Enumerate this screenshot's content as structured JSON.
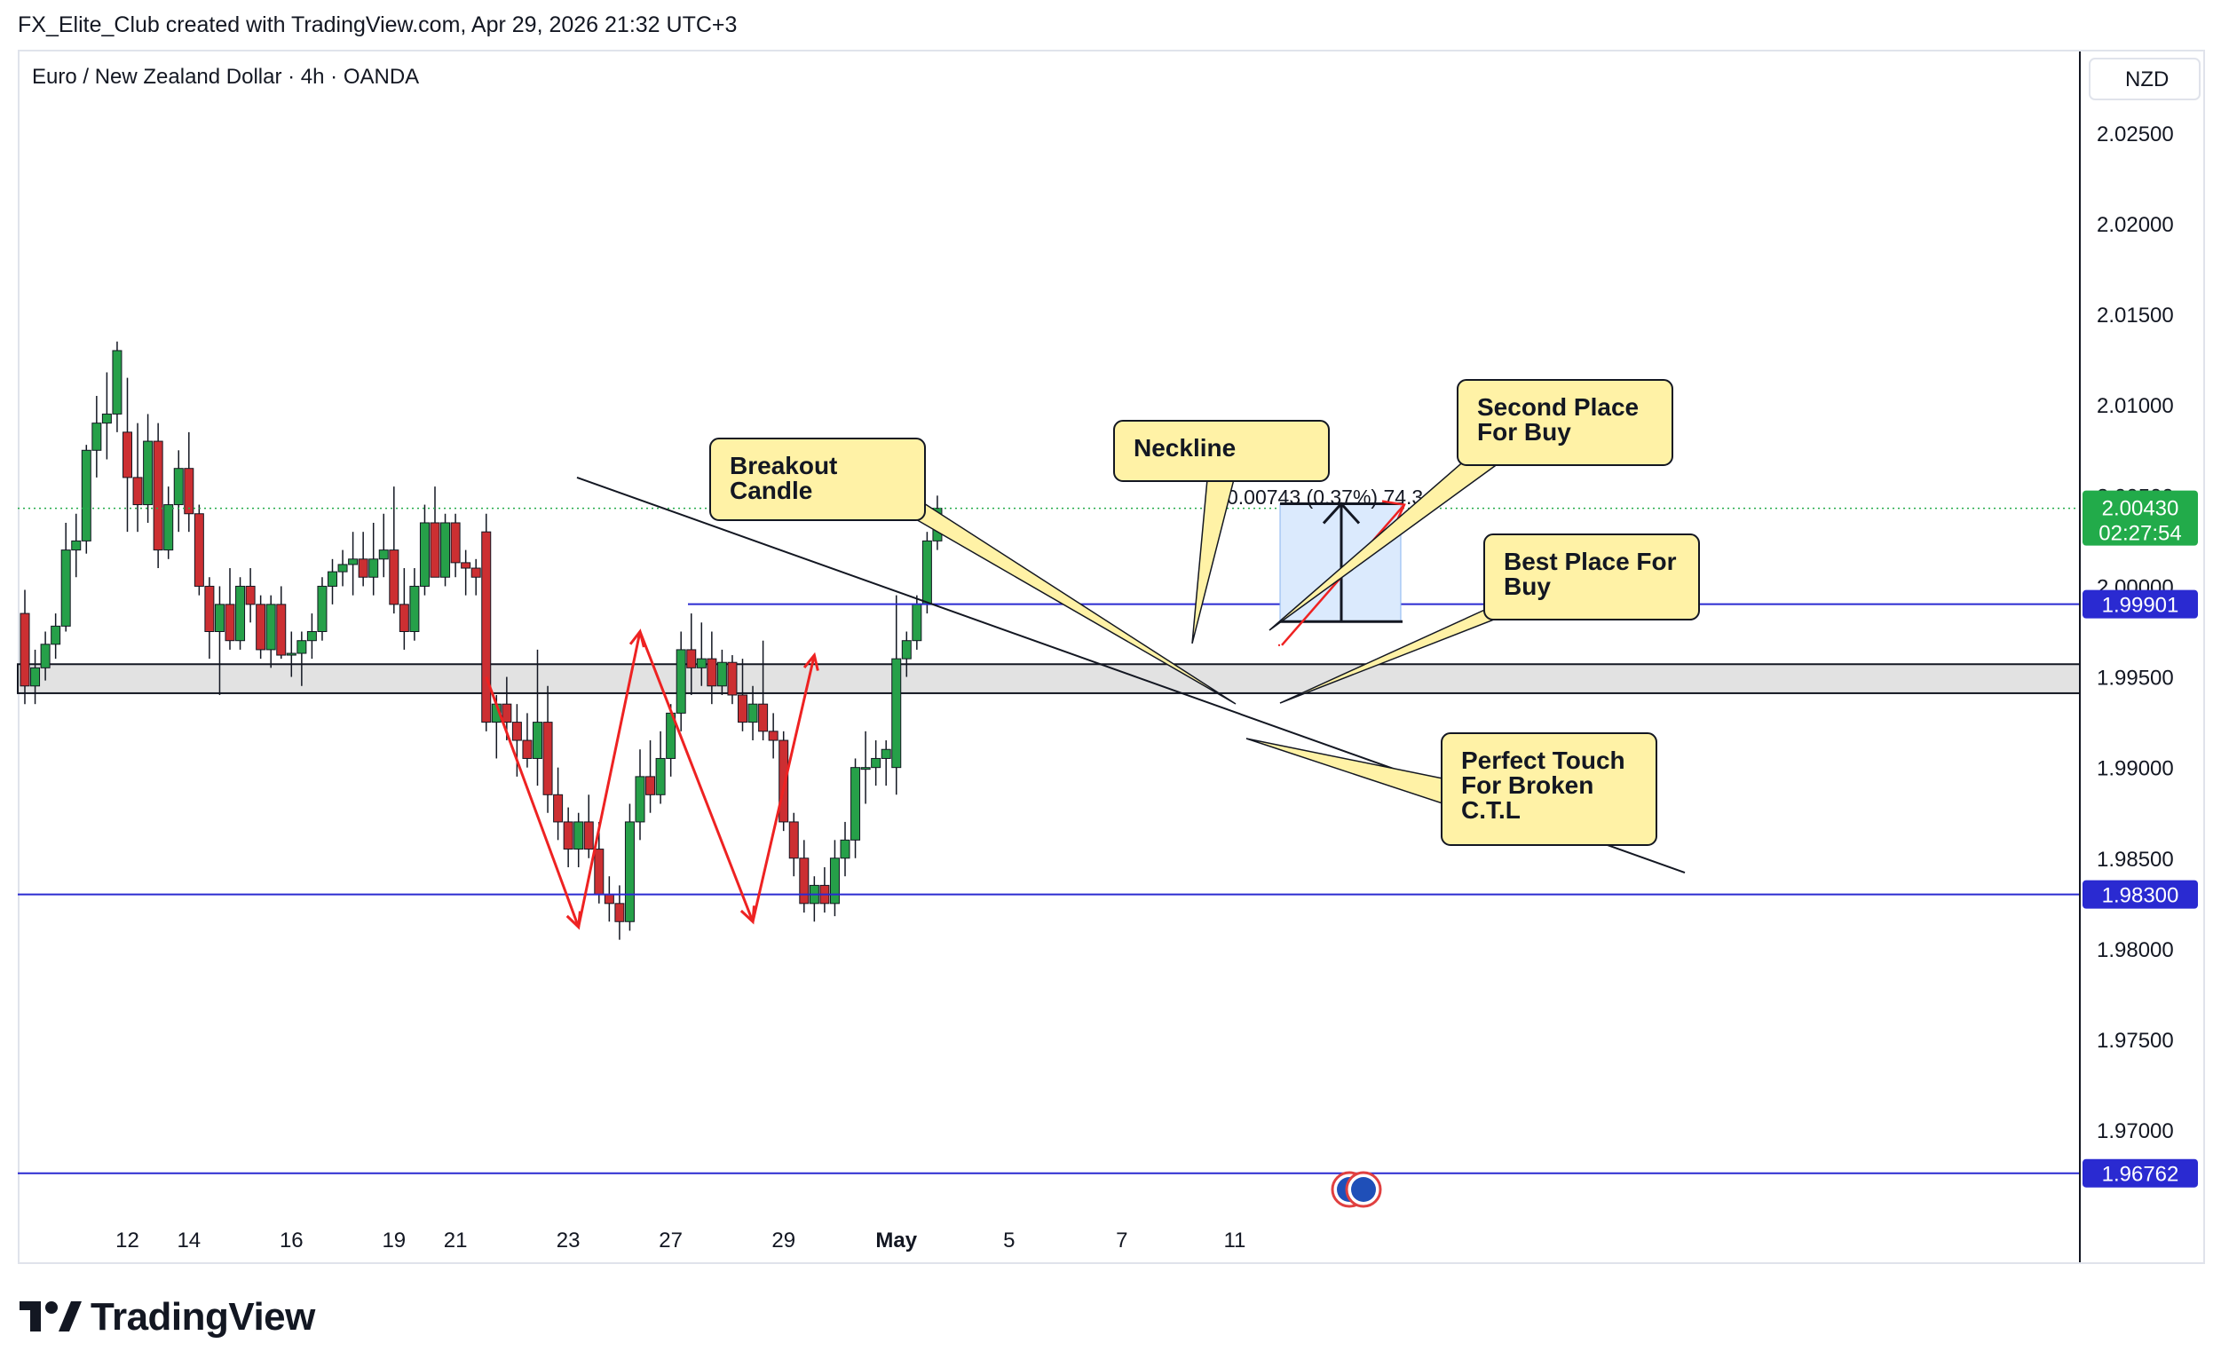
{
  "header": "FX_Elite_Club created with TradingView.com, Apr 29, 2026 21:32 UTC+3",
  "symbol_title": "Euro / New Zealand Dollar · 4h · OANDA",
  "currency": "NZD",
  "brand": "TradingView",
  "colors": {
    "up": "#26a049",
    "down": "#cc2f32",
    "level_line": "#2a2ad1",
    "price_tag": "#22ab4a",
    "callout_fill": "#fff2a6",
    "arrow": "#ee2222",
    "box_fill": "#dbeafd"
  },
  "chart_data": {
    "type": "candlestick",
    "ylim": [
      1.9655,
      2.0295
    ],
    "y_ticks": [
      {
        "value": 2.025,
        "label": "2.02500"
      },
      {
        "value": 2.02,
        "label": "2.02000"
      },
      {
        "value": 2.015,
        "label": "2.01500"
      },
      {
        "value": 2.01,
        "label": "2.01000"
      },
      {
        "value": 2.005,
        "label": "2.00500"
      },
      {
        "value": 2.0,
        "label": "2.00000"
      },
      {
        "value": 1.995,
        "label": "1.99500"
      },
      {
        "value": 1.99,
        "label": "1.99000"
      },
      {
        "value": 1.985,
        "label": "1.98500"
      },
      {
        "value": 1.98,
        "label": "1.98000"
      },
      {
        "value": 1.975,
        "label": "1.97500"
      },
      {
        "value": 1.97,
        "label": "1.97000"
      }
    ],
    "x_ticks": [
      {
        "bar": 10,
        "label": "12"
      },
      {
        "bar": 16,
        "label": "14"
      },
      {
        "bar": 26,
        "label": "16"
      },
      {
        "bar": 36,
        "label": "19"
      },
      {
        "bar": 42,
        "label": "21"
      },
      {
        "bar": 53,
        "label": "23"
      },
      {
        "bar": 63,
        "label": "27"
      },
      {
        "bar": 74,
        "label": "29"
      },
      {
        "bar": 85,
        "label": "May",
        "bold": true
      },
      {
        "bar": 96,
        "label": "5"
      },
      {
        "bar": 107,
        "label": "7"
      },
      {
        "bar": 118,
        "label": "11"
      }
    ],
    "candles": [
      [
        1.9985,
        1.9998,
        1.9935,
        1.9945
      ],
      [
        1.9945,
        1.9965,
        1.9935,
        1.9955
      ],
      [
        1.9955,
        1.9975,
        1.9948,
        1.9968
      ],
      [
        1.9968,
        1.9985,
        1.996,
        1.9978
      ],
      [
        1.9978,
        2.0035,
        1.9975,
        2.002
      ],
      [
        2.002,
        2.004,
        2.0005,
        2.0025
      ],
      [
        2.0025,
        2.0078,
        2.0018,
        2.0075
      ],
      [
        2.0075,
        2.0105,
        2.006,
        2.009
      ],
      [
        2.009,
        2.0118,
        2.007,
        2.0095
      ],
      [
        2.0095,
        2.0135,
        2.0085,
        2.013
      ],
      [
        2.0085,
        2.0115,
        2.003,
        2.006
      ],
      [
        2.006,
        2.009,
        2.003,
        2.0045
      ],
      [
        2.0045,
        2.0095,
        2.0035,
        2.008
      ],
      [
        2.008,
        2.009,
        2.001,
        2.002
      ],
      [
        2.002,
        2.0055,
        2.0015,
        2.0045
      ],
      [
        2.0045,
        2.0075,
        2.003,
        2.0065
      ],
      [
        2.0065,
        2.0085,
        2.003,
        2.004
      ],
      [
        2.004,
        2.0045,
        1.9995,
        2.0
      ],
      [
        2.0,
        2.0005,
        1.996,
        1.9975
      ],
      [
        1.9975,
        2.0,
        1.994,
        1.999
      ],
      [
        1.999,
        2.001,
        1.9965,
        1.997
      ],
      [
        1.997,
        2.0005,
        1.9965,
        2.0
      ],
      [
        2.0,
        2.001,
        1.998,
        1.999
      ],
      [
        1.999,
        1.9995,
        1.996,
        1.9965
      ],
      [
        1.9965,
        1.9995,
        1.9955,
        1.999
      ],
      [
        1.999,
        2.0,
        1.996,
        1.9962
      ],
      [
        1.9962,
        1.9975,
        1.995,
        1.9963
      ],
      [
        1.9963,
        1.9975,
        1.9945,
        1.997
      ],
      [
        1.997,
        1.9985,
        1.996,
        1.9975
      ],
      [
        1.9975,
        2.0005,
        1.997,
        2.0
      ],
      [
        2.0,
        2.0015,
        1.999,
        2.0008
      ],
      [
        2.0008,
        2.002,
        2.0,
        2.0012
      ],
      [
        2.0012,
        2.003,
        1.9995,
        2.0015
      ],
      [
        2.0015,
        2.003,
        2.0,
        2.0005
      ],
      [
        2.0005,
        2.0035,
        1.9995,
        2.0015
      ],
      [
        2.0015,
        2.004,
        2.0005,
        2.002
      ],
      [
        2.002,
        2.0055,
        1.9985,
        1.999
      ],
      [
        1.999,
        2.001,
        1.9965,
        1.9975
      ],
      [
        1.9975,
        2.001,
        1.997,
        2.0
      ],
      [
        2.0,
        2.0045,
        1.9995,
        2.0035
      ],
      [
        2.0035,
        2.0055,
        2.001,
        2.0005
      ],
      [
        2.0005,
        2.004,
        2.0,
        2.0035
      ],
      [
        2.0035,
        2.004,
        2.0005,
        2.0013
      ],
      [
        2.0013,
        2.002,
        1.9995,
        2.001
      ],
      [
        2.001,
        2.0015,
        1.9995,
        2.0005
      ],
      [
        2.003,
        2.004,
        1.992,
        1.9925
      ],
      [
        1.9925,
        1.994,
        1.9905,
        1.9935
      ],
      [
        1.9935,
        1.995,
        1.9915,
        1.9925
      ],
      [
        1.9925,
        1.9935,
        1.9895,
        1.9915
      ],
      [
        1.9915,
        1.993,
        1.99,
        1.9905
      ],
      [
        1.9905,
        1.9965,
        1.989,
        1.9925
      ],
      [
        1.9925,
        1.9945,
        1.9875,
        1.9885
      ],
      [
        1.9885,
        1.99,
        1.986,
        1.987
      ],
      [
        1.987,
        1.9878,
        1.9845,
        1.9855
      ],
      [
        1.9855,
        1.9875,
        1.9845,
        1.987
      ],
      [
        1.987,
        1.9885,
        1.985,
        1.9855
      ],
      [
        1.9855,
        1.987,
        1.9825,
        1.983
      ],
      [
        1.983,
        1.984,
        1.9815,
        1.9825
      ],
      [
        1.9825,
        1.9835,
        1.9805,
        1.9815
      ],
      [
        1.9815,
        1.988,
        1.981,
        1.987
      ],
      [
        1.987,
        1.991,
        1.986,
        1.9895
      ],
      [
        1.9895,
        1.9915,
        1.9875,
        1.9885
      ],
      [
        1.9885,
        1.992,
        1.988,
        1.9905
      ],
      [
        1.9905,
        1.9935,
        1.9895,
        1.993
      ],
      [
        1.993,
        1.9975,
        1.992,
        1.9965
      ],
      [
        1.9965,
        1.9985,
        1.994,
        1.9955
      ],
      [
        1.9955,
        1.998,
        1.9945,
        1.996
      ],
      [
        1.996,
        1.9975,
        1.9935,
        1.9945
      ],
      [
        1.9945,
        1.9965,
        1.994,
        1.9958
      ],
      [
        1.9958,
        1.9962,
        1.9935,
        1.994
      ],
      [
        1.994,
        1.996,
        1.992,
        1.9925
      ],
      [
        1.9925,
        1.9945,
        1.9915,
        1.9935
      ],
      [
        1.9935,
        1.997,
        1.9915,
        1.992
      ],
      [
        1.992,
        1.993,
        1.9905,
        1.9915
      ],
      [
        1.9915,
        1.992,
        1.9865,
        1.987
      ],
      [
        1.987,
        1.9875,
        1.984,
        1.985
      ],
      [
        1.985,
        1.986,
        1.982,
        1.9825
      ],
      [
        1.9825,
        1.984,
        1.9815,
        1.9835
      ],
      [
        1.9835,
        1.9845,
        1.982,
        1.9825
      ],
      [
        1.9825,
        1.986,
        1.9818,
        1.985
      ],
      [
        1.985,
        1.987,
        1.984,
        1.986
      ],
      [
        1.986,
        1.9905,
        1.985,
        1.99
      ],
      [
        1.99,
        1.992,
        1.988,
        1.99
      ],
      [
        1.99,
        1.9915,
        1.989,
        1.9905
      ],
      [
        1.9905,
        1.9915,
        1.989,
        1.991
      ],
      [
        1.99,
        1.9995,
        1.9885,
        1.996
      ],
      [
        1.996,
        1.9975,
        1.995,
        1.997
      ],
      [
        1.997,
        1.9995,
        1.9965,
        1.999
      ],
      [
        1.999,
        2.003,
        1.9985,
        2.0025
      ],
      [
        2.0025,
        2.005,
        2.002,
        2.0043
      ]
    ]
  },
  "levels": {
    "upper_line": {
      "value": 1.99901,
      "label": "1.99901"
    },
    "lower_line": {
      "value": 1.983,
      "label": "1.98300"
    },
    "bottom_line": {
      "value": 1.96762,
      "label": "1.96762"
    },
    "current_price": {
      "value": 2.0043,
      "label": "2.00430",
      "countdown": "02:27:54"
    },
    "zone": [
      1.9941,
      1.9957
    ]
  },
  "measure_label": "0.00743 (0.37%) 74.3",
  "callouts": {
    "breakout": [
      "Breakout",
      "Candle"
    ],
    "neckline": [
      "Neckline"
    ],
    "second_place": [
      "Second Place",
      "For Buy"
    ],
    "best_place": [
      "Best Place For",
      "Buy"
    ],
    "perfect_touch": [
      "Perfect Touch",
      "For Broken",
      "C.T.L"
    ]
  }
}
